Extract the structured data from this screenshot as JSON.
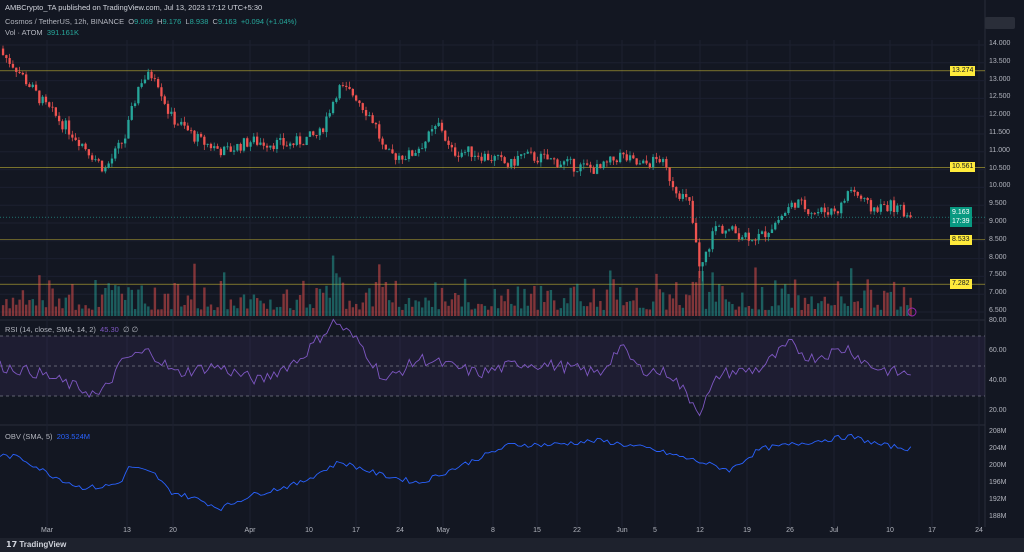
{
  "header": {
    "published": "AMBCrypto_TA published on TradingView.com, Jul 13, 2023 17:12 UTC+5:30"
  },
  "legend": {
    "symbol": "Cosmos / TetherUS, 12h, BINANCE",
    "o_label": "O",
    "o": "9.069",
    "h_label": "H",
    "h": "9.176",
    "l_label": "L",
    "l": "8.938",
    "c_label": "C",
    "c": "9.163",
    "change": "+0.094 (+1.04%)",
    "vol_label": "Vol · ATOM",
    "vol": "391.161K"
  },
  "rsi": {
    "label": "RSI (14, close, SMA, 14, 2)",
    "value": "45.30",
    "extra": "∅ ∅"
  },
  "obv": {
    "label": "OBV (SMA, 5)",
    "value": "203.524M"
  },
  "price_axis": [
    "14.000",
    "13.500",
    "13.000",
    "12.500",
    "12.000",
    "11.500",
    "11.000",
    "10.500",
    "10.000",
    "9.500",
    "9.000",
    "8.500",
    "8.000",
    "7.500",
    "7.000",
    "6.500"
  ],
  "levels": [
    {
      "value": "13.274"
    },
    {
      "value": "10.561"
    },
    {
      "value": "8.533"
    },
    {
      "value": "7.282"
    }
  ],
  "last_price": {
    "value": "9.163",
    "countdown": "17:39"
  },
  "rsi_axis": [
    "80.00",
    "60.00",
    "40.00",
    "20.00"
  ],
  "obv_axis": [
    "208M",
    "204M",
    "200M",
    "196M",
    "192M",
    "188M"
  ],
  "time_axis": [
    "Mar",
    "13",
    "20",
    "Apr",
    "10",
    "17",
    "24",
    "May",
    "8",
    "15",
    "22",
    "Jun",
    "5",
    "12",
    "19",
    "26",
    "Jul",
    "10",
    "17",
    "24"
  ],
  "footer": {
    "brand": "TradingView"
  },
  "colors": {
    "up": "#26a69a",
    "down": "#ef5350",
    "level": "#ffeb3b",
    "rsi": "#7e57c2",
    "obv": "#2962ff"
  },
  "chart_data": {
    "type": "candlestick",
    "title": "Cosmos / TetherUS, 12h, BINANCE",
    "ylim": [
      6.5,
      14.2
    ],
    "close_path": [
      [
        0,
        13.8
      ],
      [
        15,
        13.4
      ],
      [
        45,
        12.3
      ],
      [
        80,
        11.3
      ],
      [
        105,
        10.5
      ],
      [
        125,
        11.4
      ],
      [
        140,
        13.0
      ],
      [
        155,
        13.2
      ],
      [
        170,
        12.0
      ],
      [
        200,
        11.3
      ],
      [
        225,
        11.0
      ],
      [
        250,
        11.3
      ],
      [
        290,
        11.2
      ],
      [
        320,
        11.5
      ],
      [
        338,
        12.8
      ],
      [
        355,
        12.6
      ],
      [
        375,
        11.8
      ],
      [
        385,
        10.9
      ],
      [
        410,
        10.9
      ],
      [
        425,
        11.3
      ],
      [
        440,
        11.8
      ],
      [
        450,
        11.0
      ],
      [
        470,
        11.0
      ],
      [
        495,
        10.8
      ],
      [
        510,
        10.6
      ],
      [
        520,
        10.9
      ],
      [
        545,
        10.8
      ],
      [
        575,
        10.6
      ],
      [
        600,
        10.5
      ],
      [
        620,
        10.9
      ],
      [
        640,
        10.6
      ],
      [
        660,
        10.8
      ],
      [
        675,
        10.0
      ],
      [
        690,
        9.5
      ],
      [
        700,
        7.6
      ],
      [
        715,
        8.9
      ],
      [
        740,
        8.7
      ],
      [
        760,
        8.6
      ],
      [
        775,
        9.0
      ],
      [
        795,
        9.6
      ],
      [
        815,
        9.3
      ],
      [
        840,
        9.4
      ],
      [
        850,
        10.0
      ],
      [
        870,
        9.4
      ],
      [
        890,
        9.5
      ],
      [
        912,
        9.16
      ]
    ],
    "rsi_path": [
      [
        0,
        50
      ],
      [
        40,
        45
      ],
      [
        100,
        30
      ],
      [
        125,
        55
      ],
      [
        150,
        60
      ],
      [
        175,
        45
      ],
      [
        215,
        50
      ],
      [
        260,
        40
      ],
      [
        300,
        55
      ],
      [
        335,
        80
      ],
      [
        360,
        65
      ],
      [
        385,
        40
      ],
      [
        420,
        55
      ],
      [
        450,
        50
      ],
      [
        480,
        45
      ],
      [
        520,
        52
      ],
      [
        560,
        50
      ],
      [
        600,
        45
      ],
      [
        620,
        63
      ],
      [
        640,
        48
      ],
      [
        670,
        45
      ],
      [
        700,
        20
      ],
      [
        720,
        45
      ],
      [
        760,
        48
      ],
      [
        790,
        65
      ],
      [
        810,
        55
      ],
      [
        848,
        62
      ],
      [
        870,
        50
      ],
      [
        900,
        45
      ],
      [
        912,
        45
      ]
    ],
    "obv_path": [
      [
        0,
        202.5
      ],
      [
        20,
        202
      ],
      [
        50,
        198
      ],
      [
        80,
        195
      ],
      [
        100,
        195
      ],
      [
        120,
        196
      ],
      [
        130,
        200
      ],
      [
        155,
        198
      ],
      [
        170,
        194
      ],
      [
        200,
        192
      ],
      [
        220,
        190
      ],
      [
        250,
        193
      ],
      [
        300,
        196
      ],
      [
        340,
        201
      ],
      [
        380,
        198
      ],
      [
        420,
        196
      ],
      [
        470,
        201
      ],
      [
        510,
        205
      ],
      [
        550,
        205
      ],
      [
        600,
        206
      ],
      [
        650,
        204
      ],
      [
        700,
        201
      ],
      [
        730,
        199
      ],
      [
        760,
        204
      ],
      [
        790,
        205
      ],
      [
        850,
        207
      ],
      [
        880,
        205
      ],
      [
        912,
        204
      ]
    ]
  }
}
